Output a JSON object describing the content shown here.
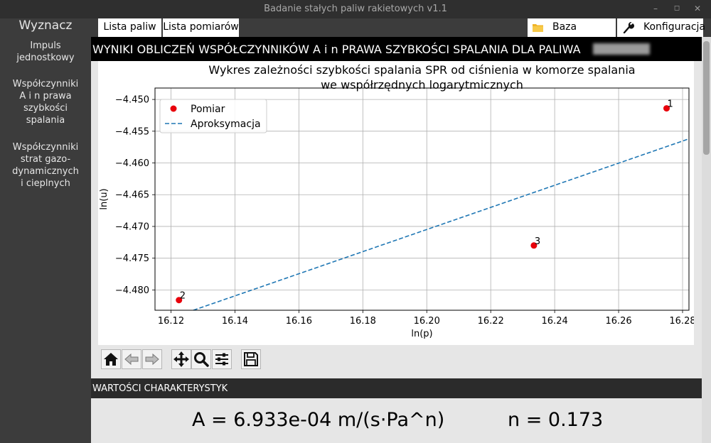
{
  "window": {
    "title": "Badanie stałych paliw rakietowych v1.1"
  },
  "sidebar": {
    "heading": "Wyznacz",
    "items": [
      {
        "label_lines": [
          "Impuls",
          "jednostkowy"
        ]
      },
      {
        "label_lines": [
          "Współczynniki",
          "A i n prawa",
          "szybkości",
          "spalania"
        ]
      },
      {
        "label_lines": [
          "Współczynniki",
          "strat gazo-",
          "dynamicznych",
          "i cieplnych"
        ]
      }
    ]
  },
  "topbar": {
    "tabs": [
      "Lista paliw",
      "Lista pomiarów"
    ],
    "database_label": "Baza danych",
    "config_label": "Konfiguracja"
  },
  "section1": {
    "title": "WYNIKI OBLICZEŃ WSPÓŁCZYNNIKÓW A i n PRAWA SZYBKOŚCI SPALANIA DLA PALIWA"
  },
  "chart_data": {
    "type": "scatter",
    "title_lines": [
      "Wykres zależności szybkości spalania SPR od ciśnienia w komorze spalania",
      "we współrzędnych logarytmicznych"
    ],
    "xlabel": "ln(p)",
    "ylabel": "ln(u)",
    "xlim": [
      16.115,
      16.282
    ],
    "ylim": [
      -4.4832,
      -4.4482
    ],
    "xticks": [
      16.12,
      16.14,
      16.16,
      16.18,
      16.2,
      16.22,
      16.24,
      16.26,
      16.28
    ],
    "yticks": [
      -4.45,
      -4.455,
      -4.46,
      -4.465,
      -4.47,
      -4.475,
      -4.48
    ],
    "grid": true,
    "legend_position": "upper left",
    "series": [
      {
        "name": "Pomiar",
        "kind": "points",
        "color": "#e8000b",
        "points": [
          {
            "x": 16.275,
            "y": -4.4514,
            "label": "1"
          },
          {
            "x": 16.1225,
            "y": -4.4816,
            "label": "2"
          },
          {
            "x": 16.2335,
            "y": -4.473,
            "label": "3"
          }
        ]
      },
      {
        "name": "Aproksymacja",
        "kind": "line",
        "color": "#1f77b4",
        "dashed": true,
        "x": [
          16.127,
          16.282
        ],
        "y": [
          -4.4832,
          -4.4562
        ]
      }
    ]
  },
  "nav_toolbar": {
    "buttons": [
      {
        "name": "home-icon"
      },
      {
        "name": "back-arrow-icon"
      },
      {
        "name": "forward-arrow-icon"
      },
      {
        "name": "pan-icon"
      },
      {
        "name": "zoom-icon"
      },
      {
        "name": "subplots-config-icon"
      },
      {
        "name": "save-icon"
      }
    ]
  },
  "section2": {
    "title": "WARTOŚCI CHARAKTERYSTYK"
  },
  "results": {
    "A": "A = 6.933e-04 m/(s·Pa^n)",
    "n": "n = 0.173"
  }
}
